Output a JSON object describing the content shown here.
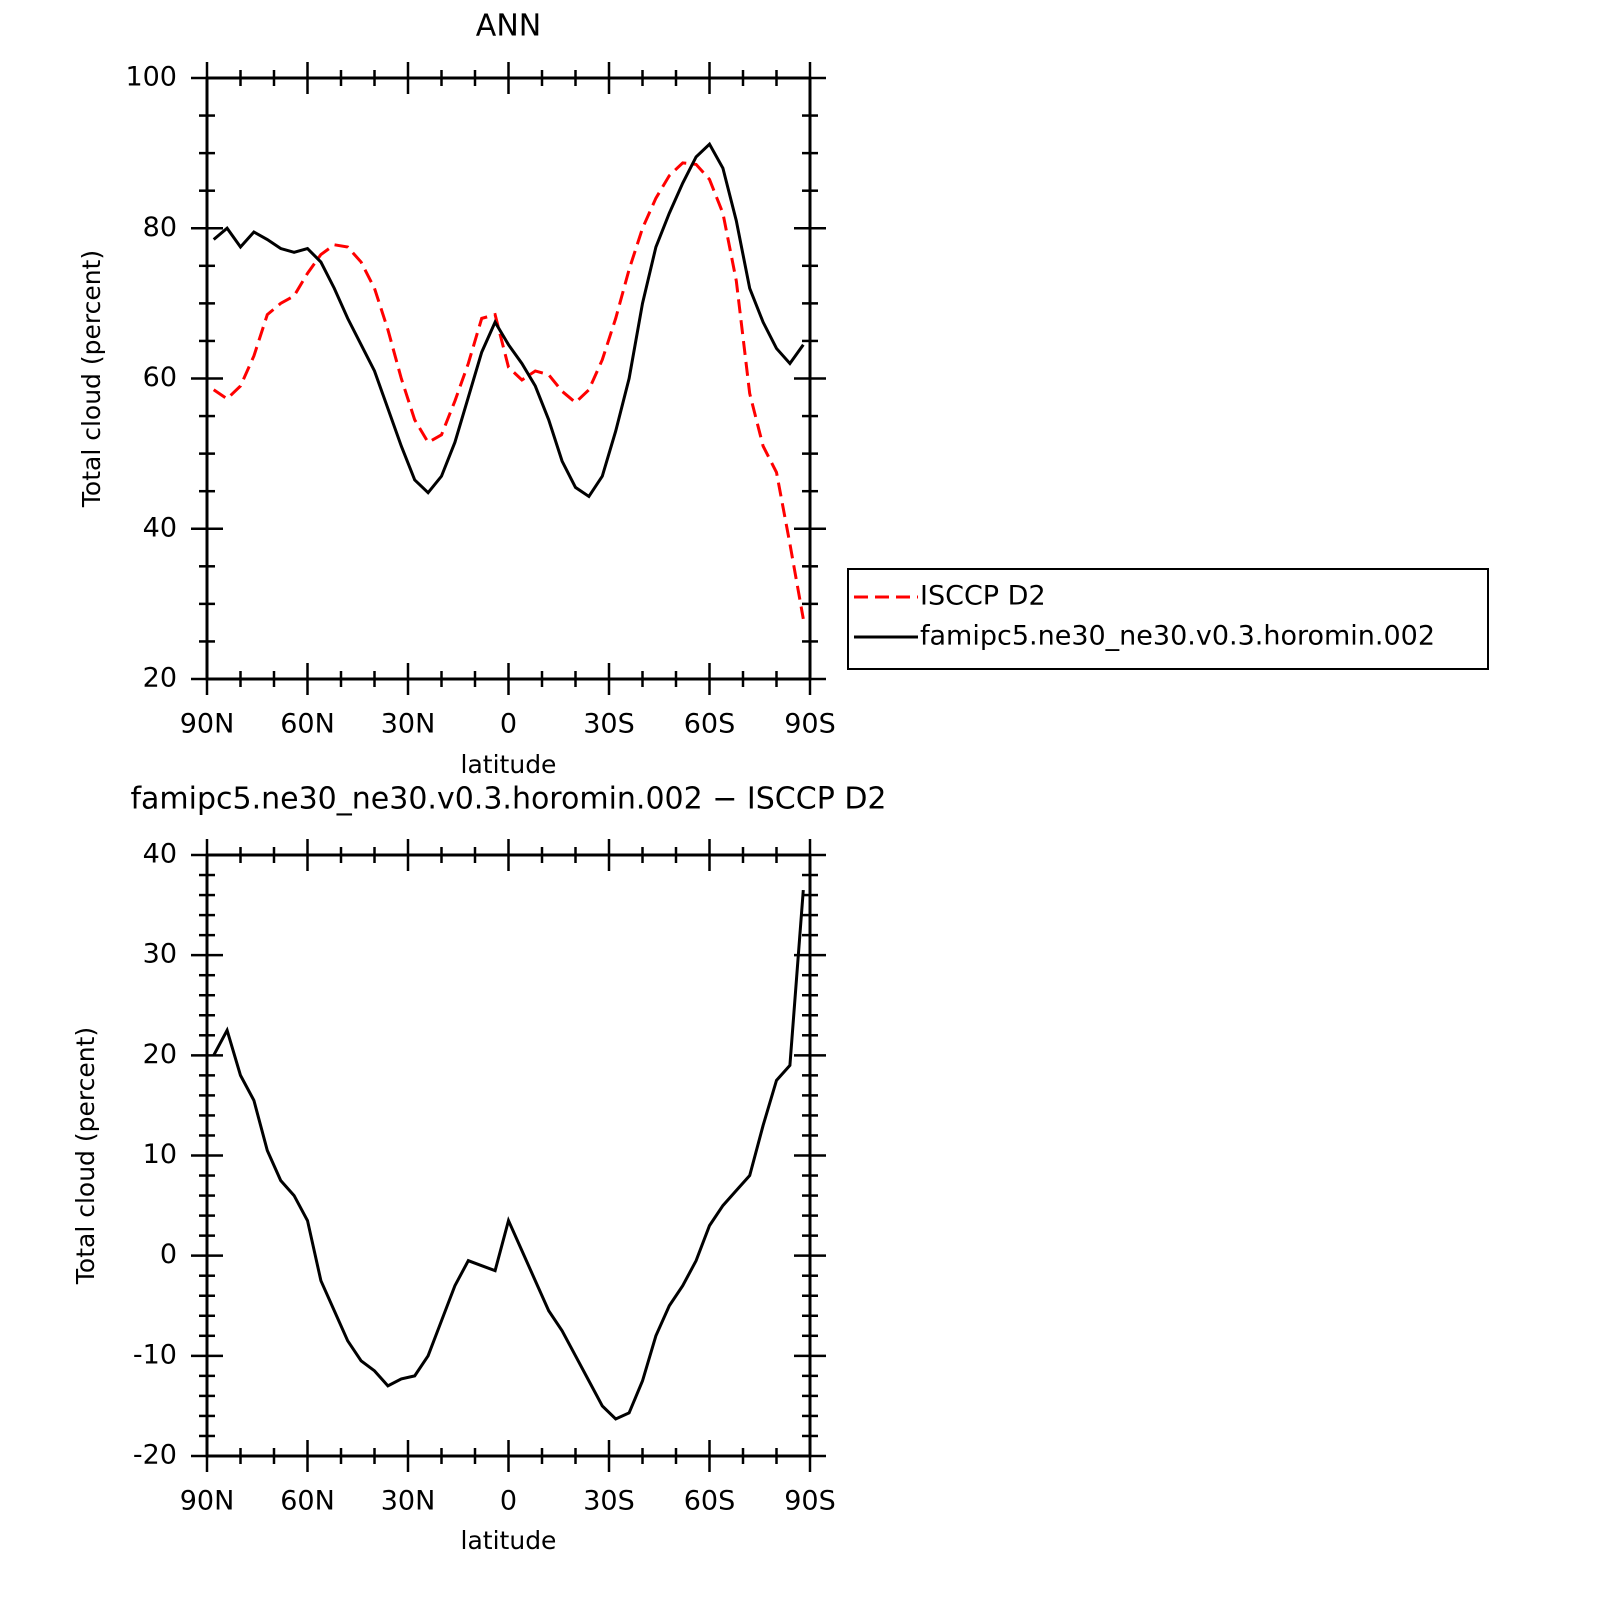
{
  "chart_data": [
    {
      "type": "line",
      "title": "ANN",
      "xlabel": "latitude",
      "ylabel": "Total cloud (percent)",
      "x": [
        88,
        84,
        80,
        76,
        72,
        68,
        64,
        60,
        56,
        52,
        48,
        44,
        40,
        36,
        32,
        28,
        24,
        20,
        16,
        12,
        8,
        4,
        0,
        -4,
        -8,
        -12,
        -16,
        -20,
        -24,
        -28,
        -32,
        -36,
        -40,
        -44,
        -48,
        -52,
        -56,
        -60,
        -64,
        -68,
        -72,
        -76,
        -80,
        -84,
        -88
      ],
      "series": [
        {
          "name": "ISCCP D2",
          "color": "#ff0000",
          "dash": true,
          "values": [
            58.5,
            57.3,
            59,
            63,
            68.5,
            70,
            71,
            74,
            76.5,
            77.8,
            77.5,
            75.5,
            72,
            66.5,
            60,
            54.5,
            51.5,
            52.5,
            57,
            62,
            68,
            68.5,
            61.5,
            59.8,
            61,
            60.5,
            58.3,
            56.8,
            58.5,
            62.5,
            68,
            74.5,
            80,
            84,
            87,
            88.7,
            88.5,
            86.5,
            82,
            73,
            58,
            51,
            47.5,
            38,
            28
          ]
        },
        {
          "name": "famipc5.ne30_ne30.v0.3.horomin.002",
          "color": "#000000",
          "dash": false,
          "values": [
            78.5,
            80,
            77.5,
            79.5,
            78.5,
            77.3,
            76.8,
            77.3,
            75.5,
            72,
            68,
            64.5,
            61,
            56,
            51,
            46.5,
            44.8,
            47,
            51.5,
            57.5,
            63.5,
            67.5,
            64.5,
            62,
            59,
            54.5,
            49,
            45.5,
            44.3,
            47,
            53,
            60,
            70,
            77.5,
            82,
            86,
            89.5,
            91.2,
            88,
            81,
            72,
            67.5,
            64,
            62,
            64.5
          ]
        }
      ],
      "xlim": [
        90,
        -90
      ],
      "xticks": [
        {
          "value": 90,
          "label": "90N"
        },
        {
          "value": 60,
          "label": "60N"
        },
        {
          "value": 30,
          "label": "30N"
        },
        0,
        {
          "value": -30,
          "label": "30S"
        },
        {
          "value": -60,
          "label": "60S"
        },
        {
          "value": -90,
          "label": "90S"
        }
      ],
      "xminorticks": [
        80,
        70,
        50,
        40,
        20,
        10,
        -10,
        -20,
        -40,
        -50,
        -70,
        -80
      ],
      "ylim": [
        20,
        100
      ],
      "yticks": [
        20,
        40,
        60,
        80,
        100
      ],
      "yminorticks": [
        25,
        30,
        35,
        45,
        50,
        55,
        65,
        70,
        75,
        85,
        90,
        95
      ],
      "legend": "right"
    },
    {
      "type": "line",
      "title": "famipc5.ne30_ne30.v0.3.horomin.002 − ISCCP D2",
      "xlabel": "latitude",
      "ylabel": "Total cloud (percent)",
      "x": [
        88,
        84,
        80,
        76,
        72,
        68,
        64,
        60,
        56,
        52,
        48,
        44,
        40,
        36,
        32,
        28,
        24,
        20,
        16,
        12,
        8,
        4,
        0,
        -4,
        -8,
        -12,
        -16,
        -20,
        -24,
        -28,
        -32,
        -36,
        -40,
        -44,
        -48,
        -52,
        -56,
        -60,
        -64,
        -68,
        -72,
        -76,
        -80,
        -84,
        -88
      ],
      "values": [
        20,
        22.5,
        18,
        15.5,
        10.5,
        7.5,
        6,
        3.5,
        -2.5,
        -5.5,
        -8.5,
        -10.5,
        -11.5,
        -13,
        -12.3,
        -12,
        -10,
        -6.5,
        -3,
        -0.5,
        -1,
        -1.5,
        3.5,
        0.5,
        -2.5,
        -5.5,
        -7.5,
        -10,
        -12.5,
        -15,
        -16.3,
        -15.7,
        -12.5,
        -8,
        -5,
        -3,
        -0.5,
        3,
        5,
        6.5,
        8,
        13,
        17.5,
        19,
        36.5
      ],
      "color": "#000000",
      "xlim": [
        90,
        -90
      ],
      "xticks": [
        {
          "value": 90,
          "label": "90N"
        },
        {
          "value": 60,
          "label": "60N"
        },
        {
          "value": 30,
          "label": "30N"
        },
        0,
        {
          "value": -30,
          "label": "30S"
        },
        {
          "value": -60,
          "label": "60S"
        },
        {
          "value": -90,
          "label": "90S"
        }
      ],
      "xminorticks": [
        80,
        70,
        50,
        40,
        20,
        10,
        -10,
        -20,
        -40,
        -50,
        -70,
        -80
      ],
      "ylim": [
        -20,
        40
      ],
      "yticks": [
        -20,
        -10,
        0,
        10,
        20,
        30,
        40
      ],
      "yminorticks": [
        -18,
        -16,
        -14,
        -12,
        -8,
        -6,
        -4,
        -2,
        2,
        4,
        6,
        8,
        12,
        14,
        16,
        18,
        22,
        24,
        26,
        28,
        32,
        34,
        36,
        38
      ]
    }
  ]
}
